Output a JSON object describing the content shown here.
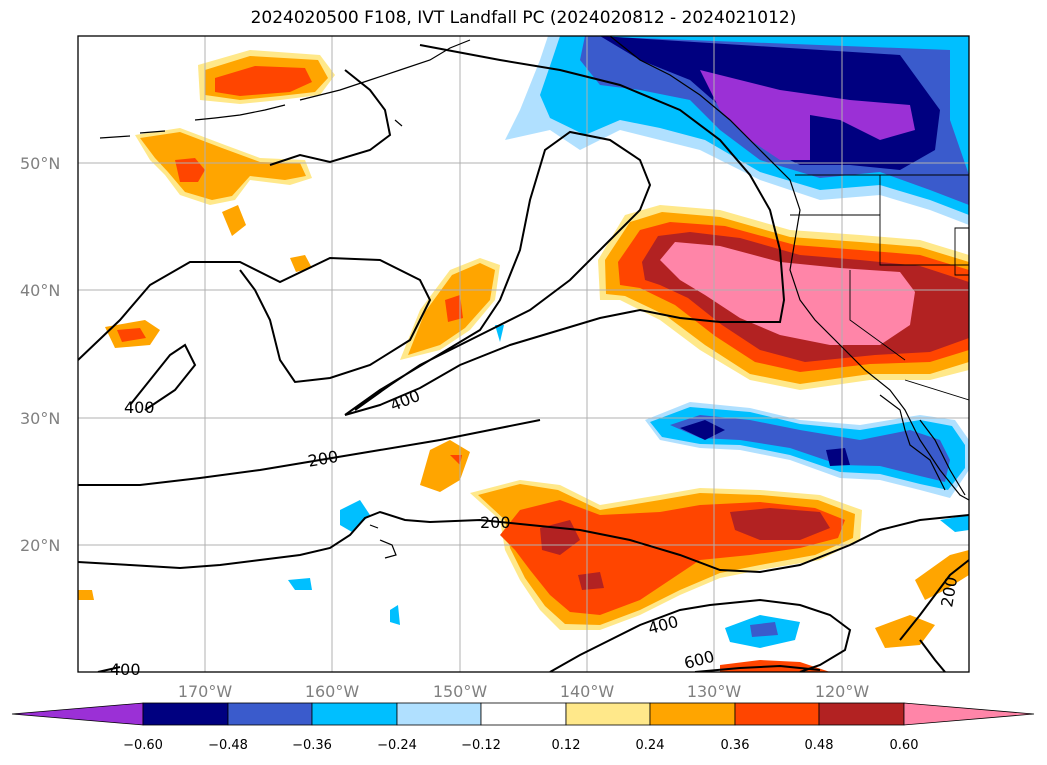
{
  "title": "2024020500 F108, IVT Landfall PC (2024020812 - 2024021012)",
  "map": {
    "lat_labels": [
      "50°N",
      "40°N",
      "30°N",
      "20°N"
    ],
    "lon_labels": [
      "170°W",
      "160°W",
      "150°W",
      "140°W",
      "130°W",
      "120°W"
    ],
    "contour_labels": [
      "400",
      "400",
      "200",
      "200",
      "400",
      "600",
      "400",
      "200"
    ]
  },
  "colorbar": {
    "ticks": [
      "−0.60",
      "−0.48",
      "−0.36",
      "−0.24",
      "−0.12",
      "0.12",
      "0.24",
      "0.36",
      "0.48",
      "0.60"
    ],
    "colors": [
      "#9b30d6",
      "#000080",
      "#3a5bcc",
      "#00bfff",
      "#b0e0ff",
      "#ffffff",
      "#ffe88a",
      "#ffa500",
      "#ff4500",
      "#b22222",
      "#ff85a8"
    ]
  },
  "colors": {
    "purple": "#9b30d6",
    "navy": "#000080",
    "blue": "#3a5bcc",
    "sky": "#00bfff",
    "lightblue": "#b0e0ff",
    "yellow": "#ffe88a",
    "orange": "#ffa500",
    "redorange": "#ff4500",
    "firebrick": "#b22222",
    "pink": "#ff85a8"
  }
}
